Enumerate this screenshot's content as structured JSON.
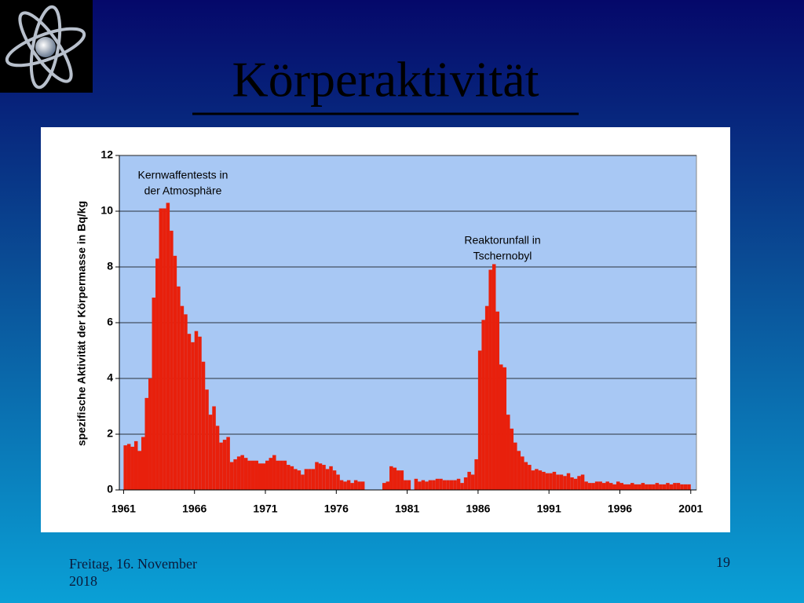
{
  "slide_title": "Körperaktivität",
  "footer": {
    "date": "Freitag, 16. November 2018",
    "page": "19"
  },
  "chart_data": {
    "type": "bar",
    "color": "#e8200c",
    "plot_background": "#a8c8f4",
    "grid": true,
    "y_label": "spezifische Aktivität der Körpermasse in Bq/kg",
    "annotations": [
      [
        "Kernwaffentests in",
        "der Atmosphäre"
      ],
      [
        "Reaktorunfall in",
        "Tschernobyl"
      ]
    ],
    "xlim": [
      1960.7,
      2001.4
    ],
    "xticks": [
      1961,
      1966,
      1971,
      1976,
      1981,
      1986,
      1991,
      1996,
      2001
    ],
    "ylim": [
      0,
      12
    ],
    "yticks": [
      0,
      2,
      4,
      6,
      8,
      10,
      12
    ],
    "x": [
      1961,
      1961.25,
      1961.5,
      1961.75,
      1962,
      1962.25,
      1962.5,
      1962.75,
      1963,
      1963.25,
      1963.5,
      1963.75,
      1964,
      1964.25,
      1964.5,
      1964.75,
      1965,
      1965.25,
      1965.5,
      1965.75,
      1966,
      1966.25,
      1966.5,
      1966.75,
      1967,
      1967.25,
      1967.5,
      1967.75,
      1968,
      1968.25,
      1968.5,
      1968.75,
      1969,
      1969.25,
      1969.5,
      1969.75,
      1970,
      1970.25,
      1970.5,
      1970.75,
      1971,
      1971.25,
      1971.5,
      1971.75,
      1972,
      1972.25,
      1972.5,
      1972.75,
      1973,
      1973.25,
      1973.5,
      1973.75,
      1974,
      1974.25,
      1974.5,
      1974.75,
      1975,
      1975.25,
      1975.5,
      1975.75,
      1976,
      1976.25,
      1976.5,
      1976.75,
      1977,
      1977.25,
      1977.5,
      1977.75,
      1978,
      1978.25,
      1978.5,
      1978.75,
      1979,
      1979.25,
      1979.5,
      1979.75,
      1980,
      1980.25,
      1980.5,
      1980.75,
      1981,
      1981.25,
      1981.5,
      1981.75,
      1982,
      1982.25,
      1982.5,
      1982.75,
      1983,
      1983.25,
      1983.5,
      1983.75,
      1984,
      1984.25,
      1984.5,
      1984.75,
      1985,
      1985.25,
      1985.5,
      1985.75,
      1986,
      1986.25,
      1986.5,
      1986.75,
      1987,
      1987.25,
      1987.5,
      1987.75,
      1988,
      1988.25,
      1988.5,
      1988.75,
      1989,
      1989.25,
      1989.5,
      1989.75,
      1990,
      1990.25,
      1990.5,
      1990.75,
      1991,
      1991.25,
      1991.5,
      1991.75,
      1992,
      1992.25,
      1992.5,
      1992.75,
      1993,
      1993.25,
      1993.5,
      1993.75,
      1994,
      1994.25,
      1994.5,
      1994.75,
      1995,
      1995.25,
      1995.5,
      1995.75,
      1996,
      1996.25,
      1996.5,
      1996.75,
      1997,
      1997.25,
      1997.5,
      1997.75,
      1998,
      1998.25,
      1998.5,
      1998.75,
      1999,
      1999.25,
      1999.5,
      1999.75,
      2000,
      2000.25,
      2000.5,
      2000.75
    ],
    "bar_width": 0.25,
    "values": [
      1.6,
      1.65,
      1.55,
      1.75,
      1.4,
      1.9,
      3.3,
      4.0,
      6.9,
      8.3,
      10.1,
      10.1,
      10.3,
      9.3,
      8.4,
      7.3,
      6.6,
      6.3,
      5.6,
      5.3,
      5.7,
      5.5,
      4.6,
      3.6,
      2.7,
      3.0,
      2.3,
      1.7,
      1.8,
      1.9,
      1.0,
      1.1,
      1.2,
      1.25,
      1.15,
      1.05,
      1.05,
      1.05,
      0.95,
      0.95,
      1.05,
      1.15,
      1.25,
      1.05,
      1.05,
      1.05,
      0.9,
      0.85,
      0.75,
      0.7,
      0.55,
      0.75,
      0.75,
      0.75,
      1.0,
      0.95,
      0.9,
      0.75,
      0.85,
      0.7,
      0.55,
      0.35,
      0.3,
      0.35,
      0.25,
      0.35,
      0.3,
      0.3,
      null,
      null,
      null,
      null,
      null,
      0.25,
      0.3,
      0.85,
      0.8,
      0.7,
      0.7,
      0.35,
      0.35,
      null,
      0.4,
      0.3,
      0.35,
      0.3,
      0.35,
      0.35,
      0.4,
      0.4,
      0.35,
      0.35,
      0.35,
      0.35,
      0.4,
      0.25,
      0.45,
      0.65,
      0.55,
      1.1,
      5.0,
      6.1,
      6.6,
      7.9,
      8.1,
      6.4,
      4.5,
      4.4,
      2.7,
      2.2,
      1.7,
      1.4,
      1.2,
      1.0,
      0.9,
      0.7,
      0.75,
      0.7,
      0.65,
      0.6,
      0.6,
      0.65,
      0.55,
      0.55,
      0.5,
      0.6,
      0.45,
      0.4,
      0.5,
      0.55,
      0.3,
      0.25,
      0.25,
      0.3,
      0.3,
      0.25,
      0.3,
      0.25,
      0.2,
      0.3,
      0.25,
      0.2,
      0.2,
      0.25,
      0.2,
      0.2,
      0.25,
      0.2,
      0.2,
      0.2,
      0.25,
      0.2,
      0.2,
      0.25,
      0.2,
      0.25,
      0.25,
      0.2,
      0.2,
      0.2
    ]
  }
}
